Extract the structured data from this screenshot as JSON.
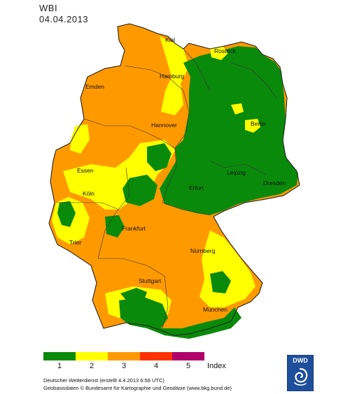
{
  "header": {
    "title": "WBI",
    "date": "04.04.2013"
  },
  "map": {
    "cities": [
      "Kiel",
      "Rostock",
      "Hamburg",
      "Emden",
      "Berlin",
      "Hannover",
      "Essen",
      "Leipzig",
      "Dresden",
      "Köln",
      "Erfurt",
      "Frankfurt",
      "Trier",
      "Nürnberg",
      "Stuttgart",
      "München"
    ]
  },
  "legend": {
    "classes": [
      {
        "label": "1",
        "color": "#0a8a0a"
      },
      {
        "label": "2",
        "color": "#ffff00"
      },
      {
        "label": "3",
        "color": "#ff9900"
      },
      {
        "label": "4",
        "color": "#ff3300"
      },
      {
        "label": "5",
        "color": "#b0006a"
      }
    ],
    "index_label": "Index"
  },
  "footer": {
    "line1": "Deutscher Wetterdienst (erstellt 4.4.2013 6:58 UTC)",
    "line2": "Geobasisdaten © Bundesamt für Kartographie und Geodäsie (www.bkg.bund.de)"
  },
  "logo": {
    "text": "DWD"
  }
}
